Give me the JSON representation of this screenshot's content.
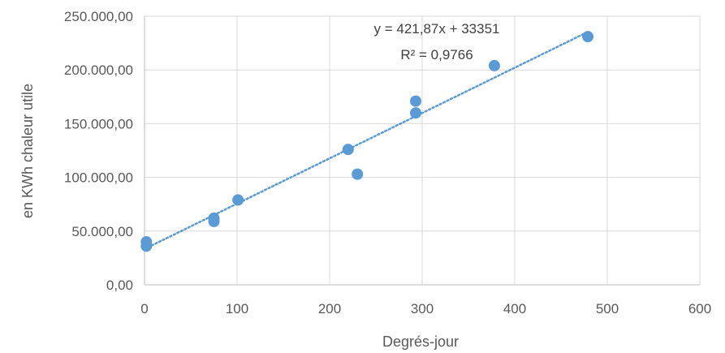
{
  "chart_data": {
    "type": "scatter",
    "xlabel": "Degrés-jour",
    "ylabel": "en KWh chaleur utile",
    "xlim": [
      0,
      600
    ],
    "ylim": [
      0,
      250000
    ],
    "x_ticks": [
      0,
      100,
      200,
      300,
      400,
      500,
      600
    ],
    "x_tick_labels": [
      "0",
      "100",
      "200",
      "300",
      "400",
      "500",
      "600"
    ],
    "y_ticks": [
      0,
      50000,
      100000,
      150000,
      200000,
      250000
    ],
    "y_tick_labels": [
      "0,00",
      "50.000,00",
      "100.000,00",
      "150.000,00",
      "200.000,00",
      "250.000,00"
    ],
    "grid": true,
    "legend": "none",
    "points": {
      "x": [
        2,
        2,
        75,
        75,
        101,
        220,
        230,
        293,
        293,
        378,
        479
      ],
      "y": [
        40000,
        36000,
        62000,
        59000,
        79000,
        126000,
        103000,
        171000,
        160000,
        204000,
        231000
      ]
    },
    "trendline": {
      "slope": 421.87,
      "intercept": 33351,
      "x_range": [
        0,
        480
      ],
      "equation_label": "y = 421,87x + 33351",
      "r2_label": "R² = 0,9766"
    },
    "colors": {
      "marker": "#5b9bd5",
      "trendline": "#5b9bd5",
      "grid": "#d9d9d9",
      "axis": "#bfbfbf"
    }
  }
}
